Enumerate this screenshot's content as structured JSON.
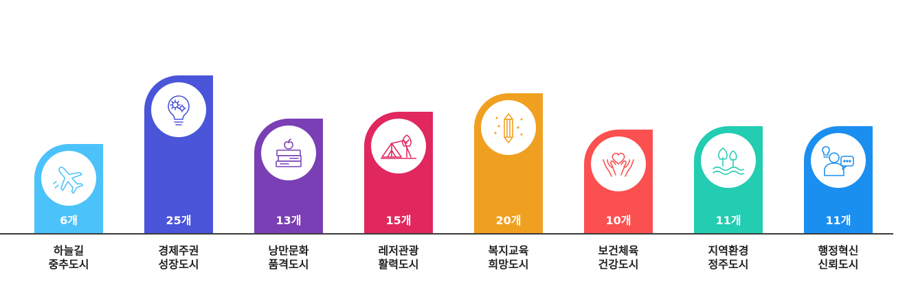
{
  "chart_data": {
    "type": "bar",
    "categories": [
      {
        "line1": "하늘길",
        "line2": "중추도시"
      },
      {
        "line1": "경제주권",
        "line2": "성장도시"
      },
      {
        "line1": "낭만문화",
        "line2": "품격도시"
      },
      {
        "line1": "레저관광",
        "line2": "활력도시"
      },
      {
        "line1": "복지교육",
        "line2": "희망도시"
      },
      {
        "line1": "보건체육",
        "line2": "건강도시"
      },
      {
        "line1": "지역환경",
        "line2": "정주도시"
      },
      {
        "line1": "행정혁신",
        "line2": "신뢰도시"
      }
    ],
    "values": [
      6,
      25,
      13,
      15,
      20,
      10,
      11,
      11
    ],
    "value_labels": [
      "6개",
      "25개",
      "13개",
      "15개",
      "20개",
      "10개",
      "11개",
      "11개"
    ],
    "colors": [
      "#4cc2fa",
      "#4a55d9",
      "#7a3fb4",
      "#e0275e",
      "#f0a020",
      "#fb5050",
      "#22cdb2",
      "#1b8ff0"
    ],
    "icons": [
      "airplane-icon",
      "lightbulb-gear-icon",
      "books-apple-icon",
      "tent-trees-icon",
      "pencil-icon",
      "hands-heart-icon",
      "trees-water-icon",
      "person-chat-icon"
    ],
    "ylim": [
      0,
      25
    ]
  }
}
